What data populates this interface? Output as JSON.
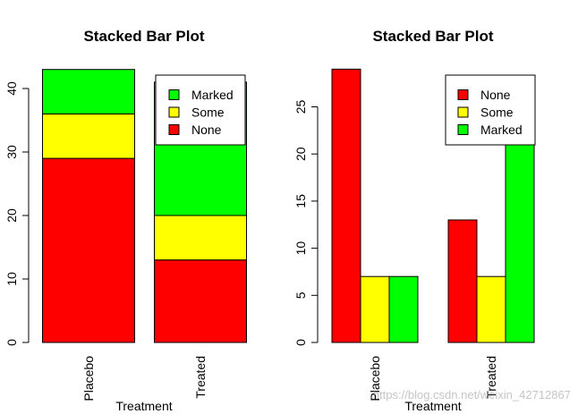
{
  "chart_data": [
    {
      "type": "bar",
      "stacked": true,
      "title": "Stacked Bar Plot",
      "xlabel": "Treatment",
      "ylabel": "",
      "categories": [
        "Placebo",
        "Treated"
      ],
      "series": [
        {
          "name": "None",
          "values": [
            29,
            13
          ],
          "color": "#ff0000"
        },
        {
          "name": "Some",
          "values": [
            7,
            7
          ],
          "color": "#ffff00"
        },
        {
          "name": "Marked",
          "values": [
            7,
            21
          ],
          "color": "#00ff00"
        }
      ],
      "legend_order": [
        "Marked",
        "Some",
        "None"
      ],
      "y_ticks": [
        0,
        10,
        20,
        30,
        40
      ],
      "ylim": [
        0,
        43
      ],
      "legend_position": "top-right"
    },
    {
      "type": "bar",
      "grouped": true,
      "title": "Stacked Bar Plot",
      "xlabel": "Treatment",
      "ylabel": "",
      "categories": [
        "Placebo",
        "Treated"
      ],
      "series": [
        {
          "name": "None",
          "values": [
            29,
            13
          ],
          "color": "#ff0000"
        },
        {
          "name": "Some",
          "values": [
            7,
            7
          ],
          "color": "#ffff00"
        },
        {
          "name": "Marked",
          "values": [
            7,
            21
          ],
          "color": "#00ff00"
        }
      ],
      "legend_order": [
        "None",
        "Some",
        "Marked"
      ],
      "y_ticks": [
        0,
        5,
        10,
        15,
        20,
        25
      ],
      "ylim": [
        0,
        29
      ],
      "legend_position": "top-right"
    }
  ],
  "watermark": "https://blog.csdn.net/weixin_42712867"
}
